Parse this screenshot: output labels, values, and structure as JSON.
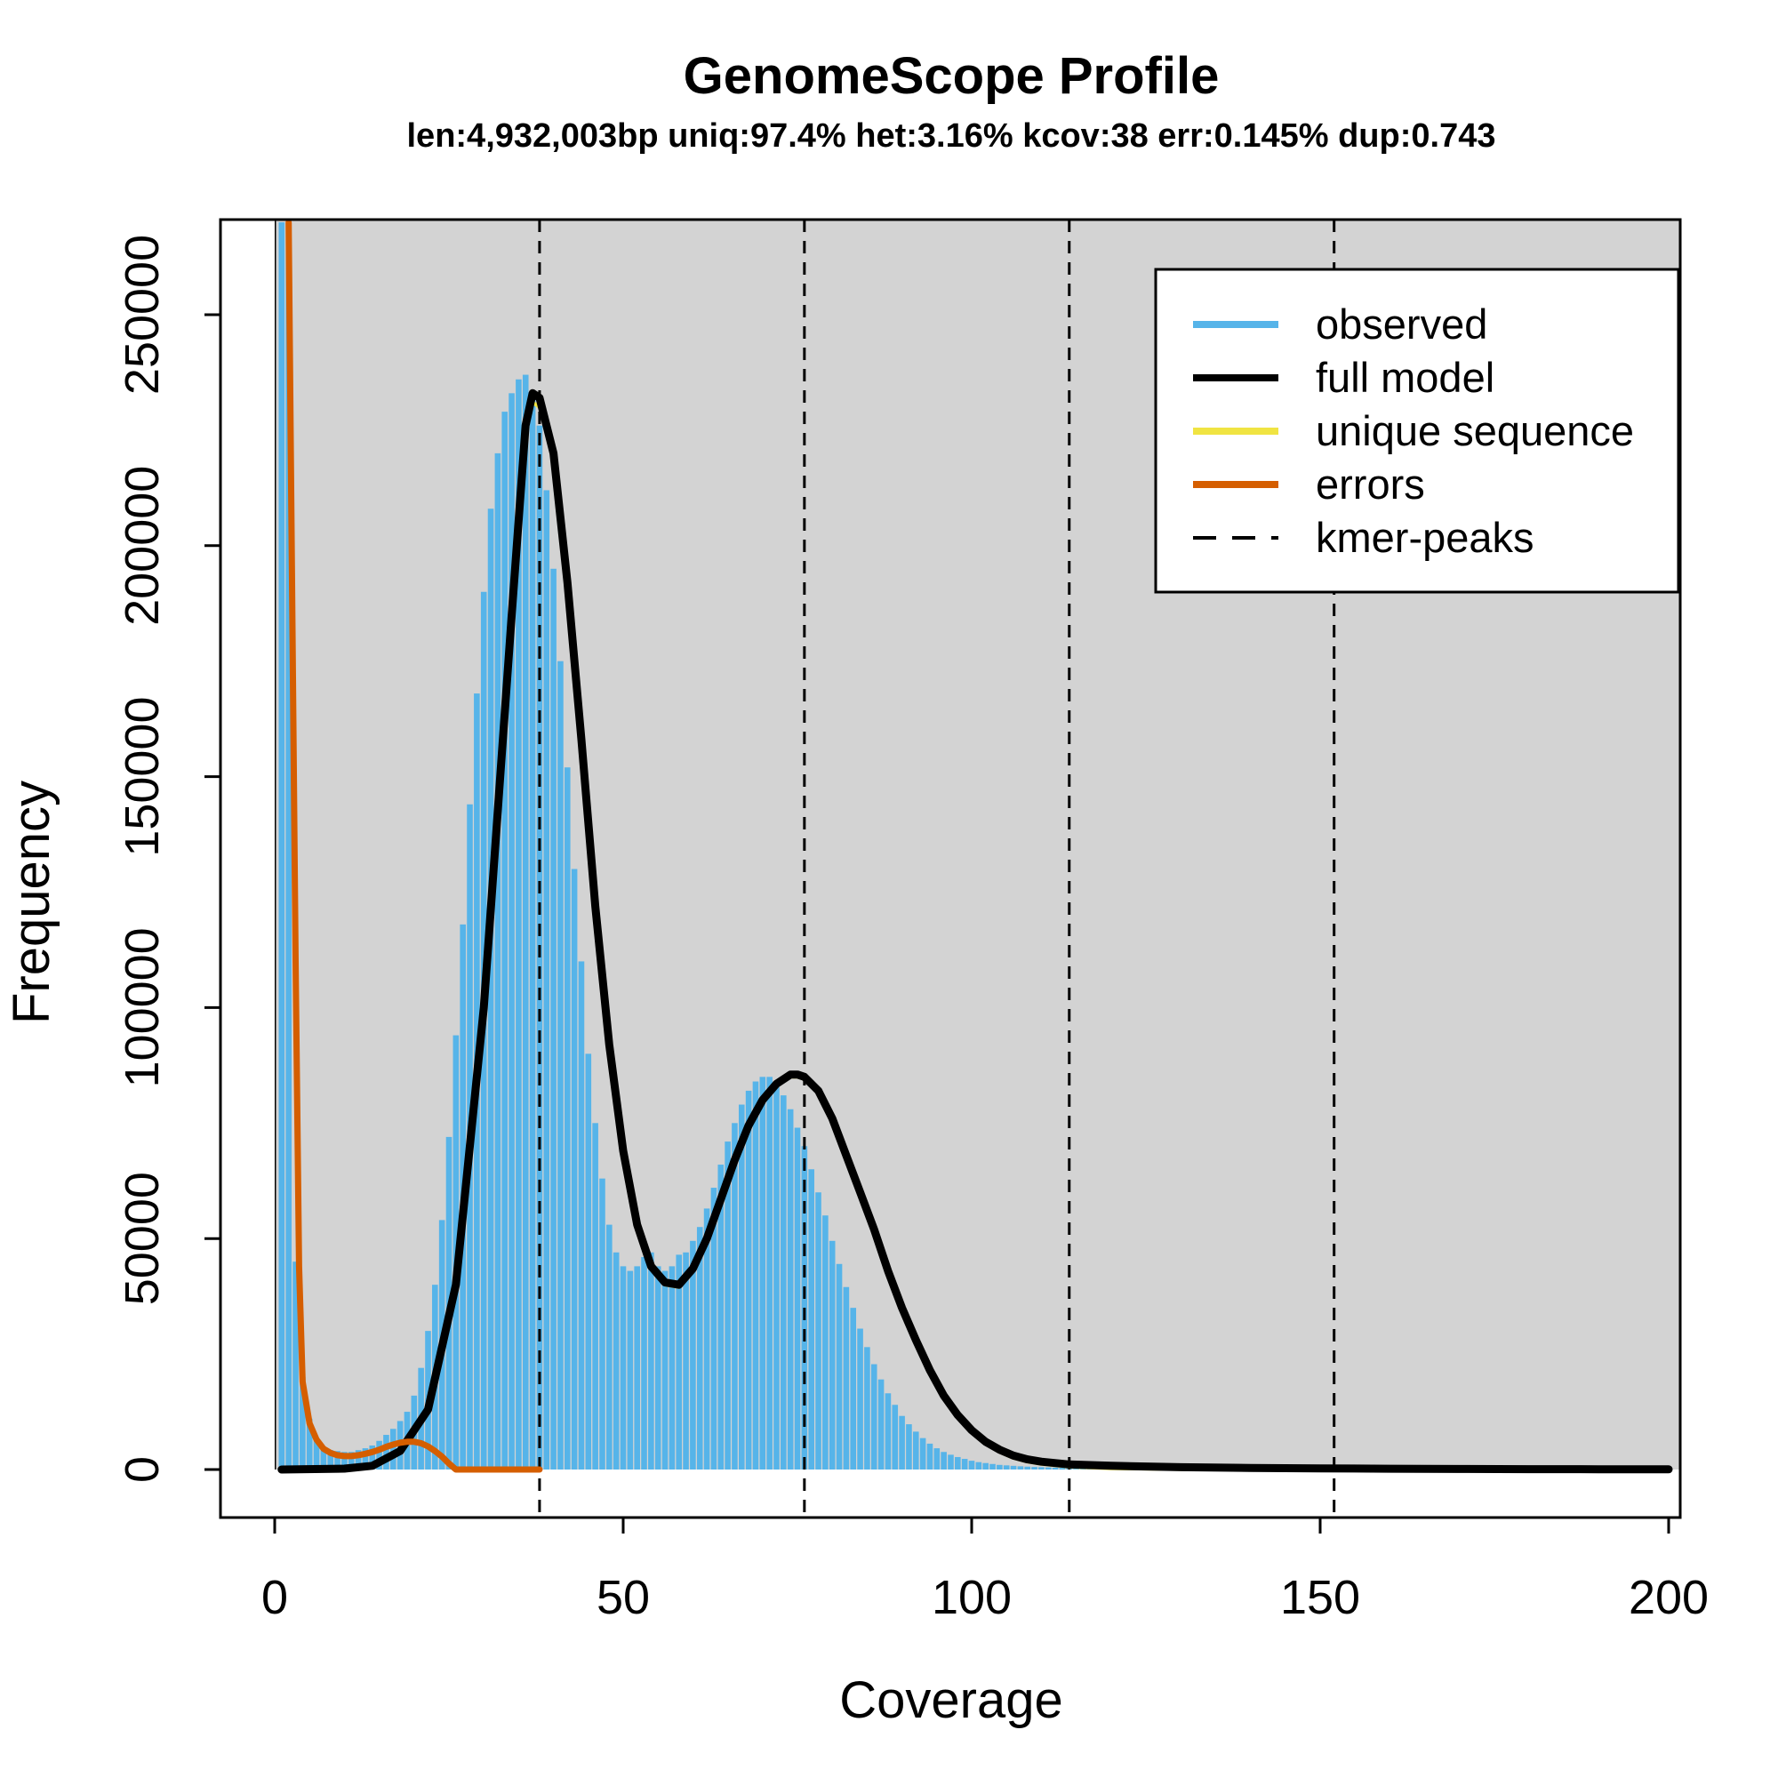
{
  "chart_data": {
    "type": "bar",
    "title": "GenomeScope Profile",
    "subtitle": "len:4,932,003bp uniq:97.4% het:3.16% kcov:38 err:0.145% dup:0.743",
    "xlabel": "Coverage",
    "ylabel": "Frequency",
    "xlim": [
      0,
      200
    ],
    "ylim": [
      0,
      270000
    ],
    "x_ticks": [
      "0",
      "50",
      "100",
      "150",
      "200"
    ],
    "y_ticks": [
      "0",
      "50000",
      "100000",
      "150000",
      "200000",
      "250000"
    ],
    "background": "#d3d3d3",
    "legend": {
      "position": "top-right",
      "items": [
        {
          "label": "observed",
          "color": "#56b4e9",
          "style": "solid"
        },
        {
          "label": "full model",
          "color": "#000000",
          "style": "solid"
        },
        {
          "label": "unique sequence",
          "color": "#f0e442",
          "style": "solid"
        },
        {
          "label": "errors",
          "color": "#d55e00",
          "style": "solid"
        },
        {
          "label": "kmer-peaks",
          "color": "#000000",
          "style": "dashed"
        }
      ]
    },
    "kmer_peaks": [
      38,
      76,
      114,
      152
    ],
    "observed": {
      "x": [
        1,
        2,
        3,
        4,
        5,
        6,
        7,
        8,
        9,
        10,
        11,
        12,
        13,
        14,
        15,
        16,
        17,
        18,
        19,
        20,
        21,
        22,
        23,
        24,
        25,
        26,
        27,
        28,
        29,
        30,
        31,
        32,
        33,
        34,
        35,
        36,
        37,
        38,
        39,
        40,
        41,
        42,
        43,
        44,
        45,
        46,
        47,
        48,
        49,
        50,
        51,
        52,
        53,
        54,
        55,
        56,
        57,
        58,
        59,
        60,
        61,
        62,
        63,
        64,
        65,
        66,
        67,
        68,
        69,
        70,
        71,
        72,
        73,
        74,
        75,
        76,
        77,
        78,
        79,
        80,
        81,
        82,
        83,
        84,
        85,
        86,
        87,
        88,
        89,
        90,
        91,
        92,
        93,
        94,
        95,
        96,
        97,
        98,
        99,
        100,
        101,
        102,
        103,
        104,
        105,
        106,
        107,
        108,
        109,
        110,
        111,
        112,
        113,
        114,
        115,
        116,
        117,
        118,
        119,
        120
      ],
      "y": [
        270000,
        270000,
        45000,
        20000,
        11000,
        6500,
        4800,
        4200,
        4000,
        3800,
        3800,
        4200,
        4600,
        5200,
        6200,
        7500,
        8800,
        10500,
        12500,
        16000,
        22000,
        30000,
        40000,
        54000,
        72000,
        94000,
        118000,
        144000,
        168000,
        190000,
        208000,
        220000,
        229000,
        233000,
        236000,
        237000,
        233000,
        226000,
        212000,
        195000,
        175000,
        152000,
        130000,
        110000,
        90000,
        75000,
        63000,
        53000,
        47000,
        44000,
        43000,
        44000,
        46000,
        47000,
        44000,
        43000,
        44000,
        46500,
        47000,
        49500,
        52500,
        56500,
        61000,
        66000,
        71000,
        75000,
        79000,
        82000,
        84000,
        85000,
        85000,
        84000,
        81000,
        78000,
        74000,
        70000,
        65000,
        60000,
        55000,
        49500,
        44500,
        39500,
        35000,
        30500,
        26500,
        22800,
        19500,
        16500,
        14000,
        11600,
        9800,
        8200,
        6800,
        5600,
        4600,
        3800,
        3200,
        2700,
        2300,
        1900,
        1600,
        1400,
        1200,
        1000,
        900,
        800,
        700,
        620,
        550,
        500,
        450,
        400,
        360,
        330,
        300,
        270,
        250,
        230,
        210,
        200
      ]
    },
    "full_model": {
      "x": [
        1,
        10,
        14,
        18,
        22,
        26,
        30,
        34,
        36,
        37,
        38,
        40,
        42,
        44,
        46,
        48,
        50,
        52,
        54,
        56,
        58,
        60,
        62,
        64,
        66,
        68,
        70,
        72,
        74,
        75,
        76,
        78,
        80,
        82,
        84,
        86,
        88,
        90,
        92,
        94,
        96,
        98,
        100,
        102,
        104,
        106,
        108,
        110,
        114,
        120,
        130,
        140,
        150,
        160,
        170,
        180,
        190,
        200
      ],
      "y": [
        0,
        200,
        800,
        4000,
        13000,
        40000,
        100000,
        185000,
        226000,
        233000,
        232000,
        220000,
        192000,
        158000,
        122000,
        92000,
        69000,
        53000,
        44000,
        40500,
        40000,
        43500,
        50000,
        58500,
        67000,
        74500,
        80000,
        83500,
        85500,
        85500,
        85000,
        82000,
        76000,
        68000,
        60000,
        52000,
        43000,
        35000,
        28000,
        21500,
        16000,
        11800,
        8500,
        6000,
        4300,
        3000,
        2200,
        1700,
        1100,
        800,
        500,
        350,
        250,
        180,
        120,
        80,
        50,
        30
      ]
    },
    "unique_sequence": {
      "x": [
        1,
        10,
        14,
        18,
        22,
        26,
        30,
        34,
        36,
        37,
        38,
        40,
        42,
        44,
        46,
        48,
        50,
        52,
        54,
        56,
        58,
        60,
        62,
        64,
        66,
        68,
        70,
        72,
        74,
        75,
        76,
        78,
        80,
        82,
        84,
        86,
        88,
        90,
        92,
        94,
        96,
        98,
        100,
        102,
        104,
        106,
        108,
        110,
        114,
        120,
        130,
        140,
        150
      ],
      "y": [
        0,
        200,
        800,
        4000,
        13000,
        40000,
        100000,
        184000,
        224000,
        231000,
        230000,
        219000,
        191000,
        157000,
        121000,
        91000,
        68500,
        52500,
        43500,
        40000,
        39500,
        43000,
        49500,
        58000,
        66500,
        74000,
        79500,
        83000,
        85000,
        85000,
        84500,
        81500,
        75500,
        67500,
        59500,
        51500,
        42500,
        34500,
        27500,
        21000,
        15500,
        11300,
        8000,
        5500,
        3800,
        2500,
        1700,
        1200,
        600,
        250,
        80,
        20,
        0
      ]
    },
    "errors": {
      "x": [
        2,
        2.5,
        3,
        3.5,
        4,
        5,
        6,
        7,
        8,
        9,
        10,
        11,
        12,
        13,
        14,
        15,
        16,
        17,
        18,
        19,
        20,
        21,
        22,
        23,
        24,
        25,
        26,
        27,
        30,
        38
      ],
      "y": [
        270000,
        190000,
        110000,
        44000,
        19000,
        10000,
        6500,
        4500,
        3600,
        3100,
        2900,
        2900,
        3100,
        3400,
        3800,
        4300,
        4900,
        5400,
        5800,
        6000,
        6000,
        5700,
        5000,
        4000,
        2800,
        1300,
        0,
        0,
        0,
        0
      ]
    }
  }
}
